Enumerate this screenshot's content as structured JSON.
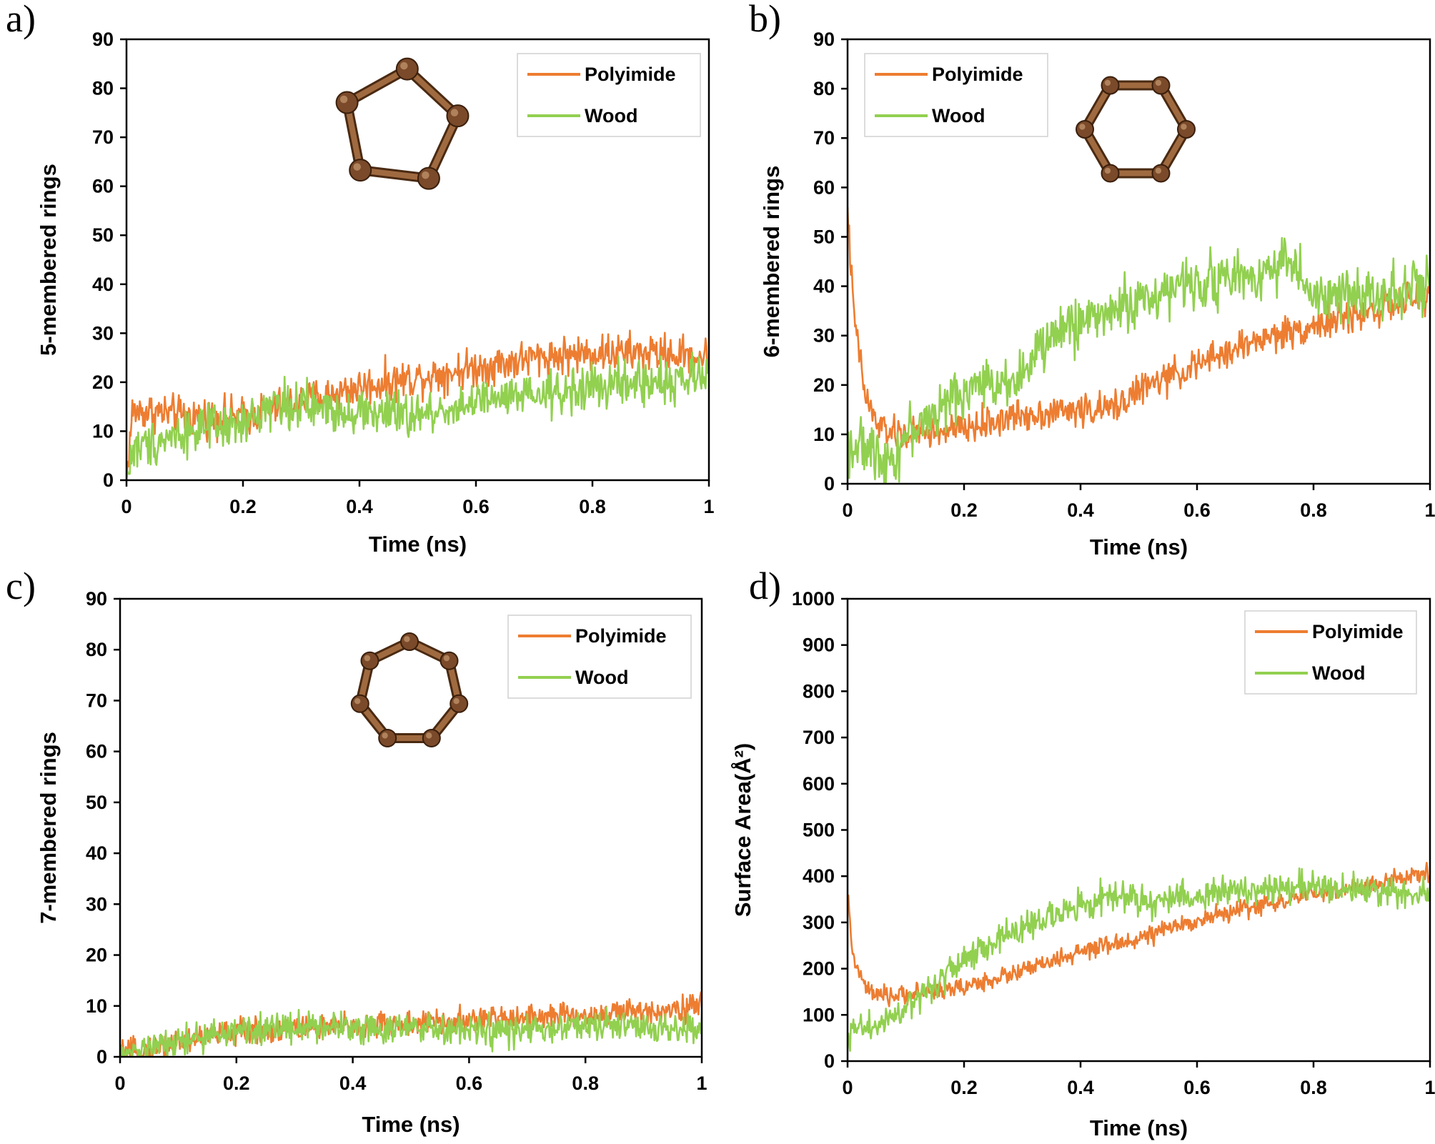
{
  "colors": {
    "polyimide": "#ED7D31",
    "wood": "#92D050",
    "ring": "#7A4A2A"
  },
  "chart_data": [
    {
      "panel": "a)",
      "type": "line",
      "xlabel": "Time (ns)",
      "ylabel": "5-membered rings",
      "xlim": [
        0,
        1
      ],
      "ylim": [
        0,
        90
      ],
      "xticks": [
        "0",
        "0.2",
        "0.4",
        "0.6",
        "0.8",
        "1"
      ],
      "yticks": [
        "0",
        "10",
        "20",
        "30",
        "40",
        "50",
        "60",
        "70",
        "80",
        "90"
      ],
      "legend": {
        "position": "top-right",
        "entries": [
          "Polyimide",
          "Wood"
        ]
      },
      "molecule": "5-ring",
      "series": [
        {
          "name": "Polyimide",
          "x": [
            0,
            0.01,
            0.05,
            0.1,
            0.2,
            0.3,
            0.4,
            0.5,
            0.6,
            0.7,
            0.8,
            0.9,
            1.0
          ],
          "y": [
            0,
            14,
            14,
            13,
            13,
            16,
            19,
            21,
            23,
            25,
            26,
            26,
            25
          ],
          "noise": 3.0
        },
        {
          "name": "Wood",
          "x": [
            0,
            0.01,
            0.05,
            0.1,
            0.2,
            0.25,
            0.3,
            0.4,
            0.5,
            0.6,
            0.7,
            0.8,
            0.9,
            1.0
          ],
          "y": [
            0,
            6,
            8,
            10,
            11,
            16,
            15,
            14,
            13,
            16,
            17,
            19,
            20,
            21
          ],
          "noise": 3.5
        }
      ]
    },
    {
      "panel": "b)",
      "type": "line",
      "xlabel": "Time (ns)",
      "ylabel": "6-membered rings",
      "xlim": [
        0,
        1
      ],
      "ylim": [
        0,
        90
      ],
      "xticks": [
        "0",
        "0.2",
        "0.4",
        "0.6",
        "0.8",
        "1"
      ],
      "yticks": [
        "0",
        "10",
        "20",
        "30",
        "40",
        "50",
        "60",
        "70",
        "80",
        "90"
      ],
      "legend": {
        "position": "top-left",
        "entries": [
          "Polyimide",
          "Wood"
        ]
      },
      "molecule": "6-ring",
      "series": [
        {
          "name": "Polyimide",
          "x": [
            0,
            0.01,
            0.03,
            0.05,
            0.08,
            0.1,
            0.2,
            0.3,
            0.4,
            0.45,
            0.5,
            0.6,
            0.7,
            0.8,
            0.9,
            1.0
          ],
          "y": [
            56,
            35,
            18,
            12,
            10,
            10,
            11,
            14,
            15,
            15,
            19,
            24,
            29,
            32,
            35,
            38
          ],
          "noise": 2.5
        },
        {
          "name": "Wood",
          "x": [
            0,
            0.03,
            0.08,
            0.1,
            0.15,
            0.2,
            0.3,
            0.35,
            0.4,
            0.5,
            0.6,
            0.7,
            0.76,
            0.8,
            0.9,
            1.0
          ],
          "y": [
            8,
            7,
            5,
            10,
            14,
            19,
            22,
            30,
            33,
            37,
            41,
            42,
            46,
            37,
            39,
            40
          ],
          "noise": 4.0
        }
      ]
    },
    {
      "panel": "c)",
      "type": "line",
      "xlabel": "Time (ns)",
      "ylabel": "7-membered rings",
      "xlim": [
        0,
        1
      ],
      "ylim": [
        0,
        90
      ],
      "xticks": [
        "0",
        "0.2",
        "0.4",
        "0.6",
        "0.8",
        "1"
      ],
      "yticks": [
        "0",
        "10",
        "20",
        "30",
        "40",
        "50",
        "60",
        "70",
        "80",
        "90"
      ],
      "legend": {
        "position": "top-right",
        "entries": [
          "Polyimide",
          "Wood"
        ]
      },
      "molecule": "7-ring",
      "series": [
        {
          "name": "Polyimide",
          "x": [
            0,
            0.1,
            0.2,
            0.3,
            0.4,
            0.5,
            0.6,
            0.7,
            0.8,
            0.9,
            1.0
          ],
          "y": [
            0,
            3,
            5,
            5.5,
            6,
            6.5,
            7,
            8,
            8,
            9,
            10
          ],
          "noise": 2.0
        },
        {
          "name": "Wood",
          "x": [
            0,
            0.1,
            0.2,
            0.3,
            0.4,
            0.5,
            0.6,
            0.7,
            0.8,
            0.9,
            1.0
          ],
          "y": [
            0,
            3,
            5,
            6,
            6,
            5.5,
            5,
            5,
            6,
            6,
            5
          ],
          "noise": 2.3
        }
      ]
    },
    {
      "panel": "d)",
      "type": "line",
      "xlabel": "Time (ns)",
      "ylabel": "Surface Area(Å²)",
      "xlim": [
        0,
        1
      ],
      "ylim": [
        0,
        1000
      ],
      "xticks": [
        "0",
        "0.2",
        "0.4",
        "0.6",
        "0.8",
        "1"
      ],
      "yticks": [
        "0",
        "100",
        "200",
        "300",
        "400",
        "500",
        "600",
        "700",
        "800",
        "900",
        "1000"
      ],
      "legend": {
        "position": "top-right",
        "entries": [
          "Polyimide",
          "Wood"
        ]
      },
      "molecule": "",
      "series": [
        {
          "name": "Polyimide",
          "x": [
            0,
            0.01,
            0.03,
            0.05,
            0.08,
            0.1,
            0.2,
            0.3,
            0.4,
            0.5,
            0.6,
            0.7,
            0.8,
            0.9,
            1.0
          ],
          "y": [
            360,
            220,
            160,
            140,
            140,
            145,
            160,
            195,
            235,
            265,
            305,
            335,
            360,
            380,
            410
          ],
          "noise": 15
        },
        {
          "name": "Wood",
          "x": [
            0,
            0.05,
            0.1,
            0.2,
            0.3,
            0.4,
            0.45,
            0.5,
            0.6,
            0.7,
            0.8,
            0.9,
            1.0
          ],
          "y": [
            60,
            80,
            110,
            220,
            290,
            335,
            360,
            345,
            360,
            370,
            380,
            370,
            360
          ],
          "noise": 25
        }
      ]
    }
  ]
}
